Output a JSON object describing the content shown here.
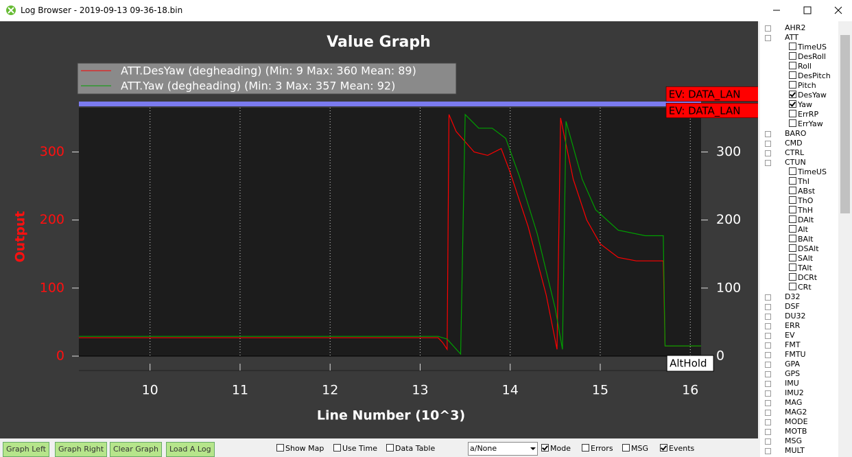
{
  "window": {
    "title": "Log Browser - 2019-09-13 09-36-18.bin"
  },
  "chart_data": {
    "type": "line",
    "title": "Value Graph",
    "x_label": "Line Number (10^3)",
    "y_label": "Output",
    "xlim": [
      9.21,
      16.12
    ],
    "xticks": [
      10,
      11,
      12,
      13,
      14,
      15,
      16
    ],
    "ylim": [
      0,
      365
    ],
    "yticks": [
      0,
      100,
      200,
      300
    ],
    "y2lim": [
      0,
      365
    ],
    "y2ticks": [
      0,
      100,
      200,
      300
    ],
    "grid": true,
    "series": [
      {
        "name": "ATT.DesYaw (degheading) (Min: 9 Max: 360 Mean: 89)",
        "color": "#ff0000",
        "x": [
          9.21,
          13.2,
          13.25,
          13.3,
          13.32,
          13.4,
          13.6,
          13.75,
          13.9,
          14.0,
          14.2,
          14.4,
          14.52,
          14.56,
          14.7,
          14.85,
          15.0,
          15.2,
          15.4,
          15.7,
          15.72,
          16.12
        ],
        "values": [
          27,
          27,
          20,
          10,
          355,
          330,
          300,
          295,
          305,
          270,
          190,
          90,
          10,
          350,
          260,
          200,
          165,
          145,
          140,
          140,
          15,
          15
        ]
      },
      {
        "name": "ATT.Yaw (degheading) (Min: 3 Max: 357 Mean: 92)",
        "color": "#00a000",
        "x": [
          9.21,
          13.2,
          13.3,
          13.45,
          13.5,
          13.65,
          13.8,
          13.95,
          14.1,
          14.3,
          14.5,
          14.58,
          14.62,
          14.8,
          14.95,
          15.2,
          15.5,
          15.7,
          15.72,
          16.12
        ],
        "values": [
          29,
          29,
          25,
          3,
          355,
          335,
          335,
          320,
          265,
          180,
          70,
          10,
          345,
          260,
          215,
          185,
          177,
          177,
          15,
          15
        ]
      }
    ],
    "events": [
      {
        "x": 15.73,
        "label": "EV: DATA_LAN"
      },
      {
        "x": 15.73,
        "label": "EV: DATA_LAN"
      }
    ],
    "modes": [
      {
        "x": 15.74,
        "label": "AltHold"
      }
    ]
  },
  "tree": [
    {
      "label": "AHR2"
    },
    {
      "label": "ATT",
      "children": [
        {
          "label": "TimeUS",
          "checked": false
        },
        {
          "label": "DesRoll",
          "checked": false
        },
        {
          "label": "Roll",
          "checked": false
        },
        {
          "label": "DesPitch",
          "checked": false
        },
        {
          "label": "Pitch",
          "checked": false
        },
        {
          "label": "DesYaw",
          "checked": true
        },
        {
          "label": "Yaw",
          "checked": true
        },
        {
          "label": "ErrRP",
          "checked": false
        },
        {
          "label": "ErrYaw",
          "checked": false
        }
      ]
    },
    {
      "label": "BARO"
    },
    {
      "label": "CMD"
    },
    {
      "label": "CTRL"
    },
    {
      "label": "CTUN",
      "children": [
        {
          "label": "TimeUS",
          "checked": false
        },
        {
          "label": "ThI",
          "checked": false
        },
        {
          "label": "ABst",
          "checked": false
        },
        {
          "label": "ThO",
          "checked": false
        },
        {
          "label": "ThH",
          "checked": false
        },
        {
          "label": "DAlt",
          "checked": false
        },
        {
          "label": "Alt",
          "checked": false
        },
        {
          "label": "BAlt",
          "checked": false
        },
        {
          "label": "DSAlt",
          "checked": false
        },
        {
          "label": "SAlt",
          "checked": false
        },
        {
          "label": "TAlt",
          "checked": false
        },
        {
          "label": "DCRt",
          "checked": false
        },
        {
          "label": "CRt",
          "checked": false
        }
      ]
    },
    {
      "label": "D32"
    },
    {
      "label": "DSF"
    },
    {
      "label": "DU32"
    },
    {
      "label": "ERR"
    },
    {
      "label": "EV"
    },
    {
      "label": "FMT"
    },
    {
      "label": "FMTU"
    },
    {
      "label": "GPA"
    },
    {
      "label": "GPS"
    },
    {
      "label": "IMU"
    },
    {
      "label": "IMU2"
    },
    {
      "label": "MAG"
    },
    {
      "label": "MAG2"
    },
    {
      "label": "MODE"
    },
    {
      "label": "MOTB"
    },
    {
      "label": "MSG"
    },
    {
      "label": "MULT"
    }
  ],
  "buttons": [
    "Graph Left",
    "Graph Right",
    "Clear Graph",
    "Load A Log"
  ],
  "options": [
    {
      "label": "Show Map",
      "checked": false
    },
    {
      "label": "Use Time",
      "checked": false
    },
    {
      "label": "Data Table",
      "checked": false
    },
    {
      "label": "Mode",
      "checked": true
    },
    {
      "label": "Errors",
      "checked": false
    },
    {
      "label": "MSG",
      "checked": false
    },
    {
      "label": "Events",
      "checked": true
    }
  ],
  "dropdown": "a/None"
}
